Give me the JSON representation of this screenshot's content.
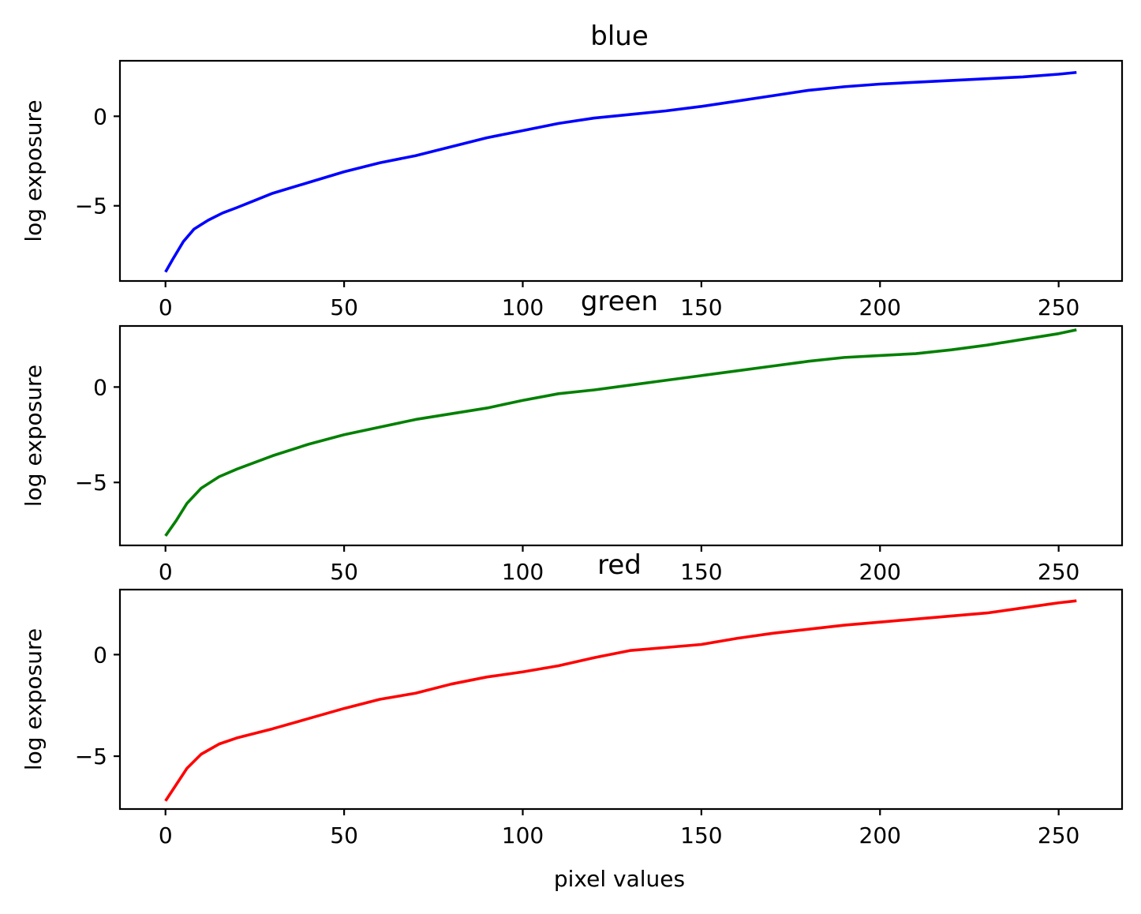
{
  "chart_data": [
    {
      "type": "line",
      "title": "blue",
      "xlabel": "",
      "ylabel": "log exposure",
      "xlim": [
        -12.75,
        267.75
      ],
      "ylim": [
        -9.2,
        3.1
      ],
      "xticks": [
        0,
        50,
        100,
        150,
        200,
        250
      ],
      "yticks": [
        -5,
        0
      ],
      "grid": false,
      "color": "#0000ff",
      "x": [
        0,
        2,
        5,
        8,
        12,
        16,
        20,
        25,
        30,
        40,
        50,
        60,
        70,
        80,
        90,
        100,
        110,
        120,
        130,
        140,
        150,
        160,
        170,
        180,
        190,
        200,
        210,
        220,
        230,
        240,
        250,
        255
      ],
      "y": [
        -8.7,
        -8.0,
        -7.0,
        -6.3,
        -5.8,
        -5.4,
        -5.1,
        -4.7,
        -4.3,
        -3.7,
        -3.1,
        -2.6,
        -2.2,
        -1.7,
        -1.2,
        -0.8,
        -0.4,
        -0.1,
        0.1,
        0.3,
        0.55,
        0.85,
        1.15,
        1.45,
        1.65,
        1.8,
        1.9,
        2.0,
        2.1,
        2.2,
        2.35,
        2.45
      ]
    },
    {
      "type": "line",
      "title": "green",
      "xlabel": "",
      "ylabel": "log exposure",
      "xlim": [
        -12.75,
        267.75
      ],
      "ylim": [
        -8.3,
        3.2
      ],
      "xticks": [
        0,
        50,
        100,
        150,
        200,
        250
      ],
      "yticks": [
        -5,
        0
      ],
      "grid": false,
      "color": "#008000",
      "x": [
        0,
        3,
        6,
        10,
        15,
        20,
        30,
        40,
        50,
        60,
        70,
        80,
        90,
        100,
        110,
        120,
        130,
        140,
        150,
        160,
        170,
        180,
        190,
        200,
        210,
        220,
        230,
        240,
        250,
        255
      ],
      "y": [
        -7.8,
        -7.0,
        -6.1,
        -5.3,
        -4.7,
        -4.3,
        -3.6,
        -3.0,
        -2.5,
        -2.1,
        -1.7,
        -1.4,
        -1.1,
        -0.7,
        -0.35,
        -0.15,
        0.1,
        0.35,
        0.6,
        0.85,
        1.1,
        1.35,
        1.55,
        1.65,
        1.75,
        1.95,
        2.2,
        2.5,
        2.8,
        3.0
      ]
    },
    {
      "type": "line",
      "title": "red",
      "xlabel": "pixel values",
      "ylabel": "log exposure",
      "xlim": [
        -12.75,
        267.75
      ],
      "ylim": [
        -7.6,
        3.2
      ],
      "xticks": [
        0,
        50,
        100,
        150,
        200,
        250
      ],
      "yticks": [
        -5,
        0
      ],
      "grid": false,
      "color": "#ff0000",
      "x": [
        0,
        3,
        6,
        10,
        15,
        20,
        30,
        40,
        50,
        60,
        70,
        80,
        90,
        100,
        110,
        120,
        130,
        140,
        150,
        160,
        170,
        180,
        190,
        200,
        210,
        220,
        230,
        240,
        250,
        255
      ],
      "y": [
        -7.2,
        -6.4,
        -5.6,
        -4.9,
        -4.4,
        -4.1,
        -3.65,
        -3.15,
        -2.65,
        -2.2,
        -1.9,
        -1.45,
        -1.1,
        -0.85,
        -0.55,
        -0.15,
        0.2,
        0.35,
        0.5,
        0.8,
        1.05,
        1.25,
        1.45,
        1.6,
        1.75,
        1.9,
        2.05,
        2.3,
        2.55,
        2.65
      ]
    }
  ]
}
